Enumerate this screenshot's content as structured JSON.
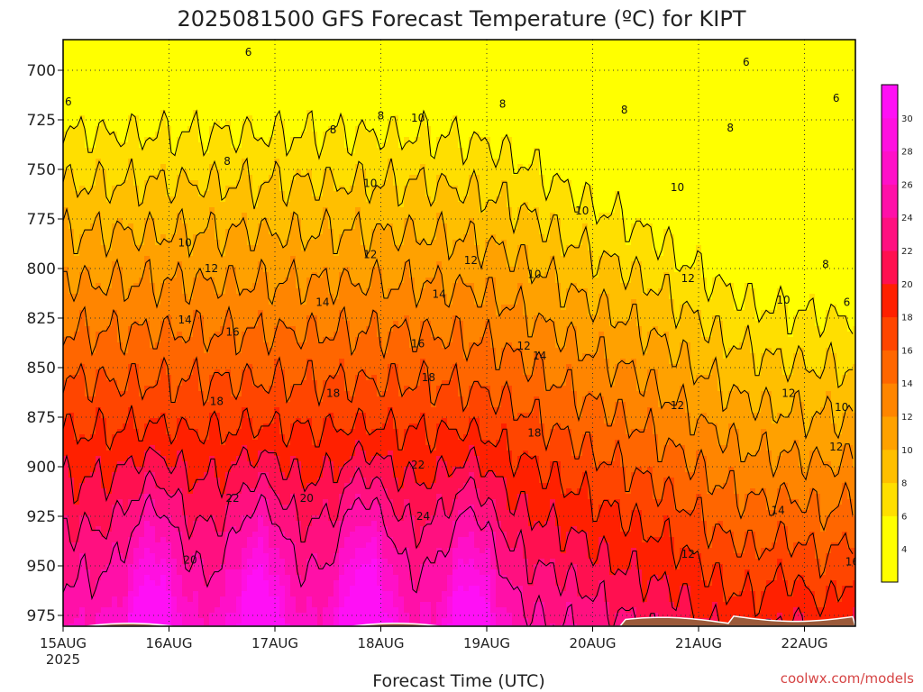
{
  "chart_data": {
    "type": "heatmap",
    "title": "2025081500 GFS Forecast Temperature (ºC) for KIPT",
    "xlabel": "Forecast Time (UTC)",
    "credit": "coolwx.com/models",
    "x_ticks": [
      "15AUG",
      "16AUG",
      "17AUG",
      "18AUG",
      "19AUG",
      "20AUG",
      "21AUG",
      "22AUG"
    ],
    "x_year": "2025",
    "y_ticks": [
      700,
      725,
      750,
      775,
      800,
      825,
      850,
      875,
      900,
      925,
      950,
      975
    ],
    "y_axis": "pressure (hPa), inverted",
    "colorbar_ticks": [
      4,
      6,
      8,
      10,
      12,
      14,
      16,
      18,
      20,
      22,
      24,
      26,
      28,
      30
    ],
    "contour_levels": [
      6,
      8,
      10,
      12,
      14,
      16,
      18,
      20,
      22,
      24
    ],
    "contour_labels": [
      {
        "t": 0.05,
        "p": 716,
        "v": "6"
      },
      {
        "t": 1.75,
        "p": 691,
        "v": "6"
      },
      {
        "t": 1.55,
        "p": 746,
        "v": "8"
      },
      {
        "t": 2.55,
        "p": 730,
        "v": "8"
      },
      {
        "t": 3.0,
        "p": 723,
        "v": "8"
      },
      {
        "t": 3.35,
        "p": 724,
        "v": "10"
      },
      {
        "t": 4.15,
        "p": 717,
        "v": "8"
      },
      {
        "t": 5.3,
        "p": 720,
        "v": "8"
      },
      {
        "t": 6.3,
        "p": 729,
        "v": "8"
      },
      {
        "t": 6.45,
        "p": 696,
        "v": "6"
      },
      {
        "t": 7.3,
        "p": 714,
        "v": "6"
      },
      {
        "t": 7.8,
        "p": 766,
        "v": "6"
      },
      {
        "t": 2.9,
        "p": 757,
        "v": "10"
      },
      {
        "t": 5.8,
        "p": 759,
        "v": "10"
      },
      {
        "t": 4.9,
        "p": 771,
        "v": "10"
      },
      {
        "t": 1.15,
        "p": 787,
        "v": "10"
      },
      {
        "t": 2.9,
        "p": 793,
        "v": "12"
      },
      {
        "t": 3.85,
        "p": 796,
        "v": "12"
      },
      {
        "t": 1.4,
        "p": 800,
        "v": "12"
      },
      {
        "t": 4.45,
        "p": 803,
        "v": "10"
      },
      {
        "t": 5.9,
        "p": 805,
        "v": "12"
      },
      {
        "t": 7.2,
        "p": 798,
        "v": "8"
      },
      {
        "t": 6.8,
        "p": 816,
        "v": "10"
      },
      {
        "t": 7.4,
        "p": 817,
        "v": "6"
      },
      {
        "t": 2.45,
        "p": 817,
        "v": "14"
      },
      {
        "t": 3.55,
        "p": 813,
        "v": "14"
      },
      {
        "t": 1.15,
        "p": 826,
        "v": "14"
      },
      {
        "t": 1.6,
        "p": 832,
        "v": "16"
      },
      {
        "t": 3.35,
        "p": 838,
        "v": "16"
      },
      {
        "t": 4.35,
        "p": 839,
        "v": "12"
      },
      {
        "t": 4.5,
        "p": 844,
        "v": "14"
      },
      {
        "t": 7.55,
        "p": 837,
        "v": "8"
      },
      {
        "t": 3.45,
        "p": 855,
        "v": "18"
      },
      {
        "t": 2.55,
        "p": 863,
        "v": "18"
      },
      {
        "t": 1.45,
        "p": 867,
        "v": "18"
      },
      {
        "t": 6.85,
        "p": 863,
        "v": "12"
      },
      {
        "t": 5.8,
        "p": 869,
        "v": "12"
      },
      {
        "t": 7.35,
        "p": 870,
        "v": "10"
      },
      {
        "t": 4.45,
        "p": 883,
        "v": "18"
      },
      {
        "t": 7.3,
        "p": 890,
        "v": "12"
      },
      {
        "t": 3.35,
        "p": 899,
        "v": "22"
      },
      {
        "t": 1.6,
        "p": 916,
        "v": "22"
      },
      {
        "t": 2.3,
        "p": 916,
        "v": "20"
      },
      {
        "t": 3.4,
        "p": 925,
        "v": "24"
      },
      {
        "t": 6.75,
        "p": 922,
        "v": "14"
      },
      {
        "t": 7.55,
        "p": 925,
        "v": "14"
      },
      {
        "t": 5.9,
        "p": 944,
        "v": "12"
      },
      {
        "t": 1.2,
        "p": 947,
        "v": "20"
      },
      {
        "t": 7.45,
        "p": 948,
        "v": "16"
      }
    ]
  }
}
